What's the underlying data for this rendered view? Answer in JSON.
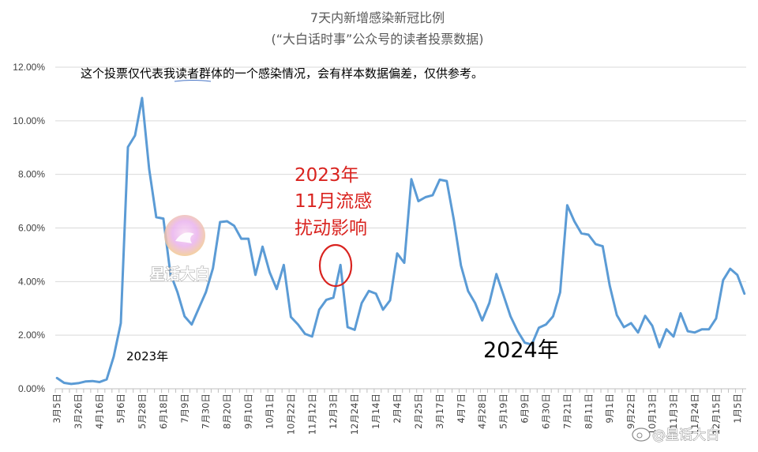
{
  "chart_data": {
    "type": "line",
    "title": "7天内新增感染新冠比例",
    "subtitle": "(“大白话时事”公众号的读者投票数据)",
    "ylim": [
      0,
      12
    ],
    "y_ticks": [
      "0.00%",
      "2.00%",
      "4.00%",
      "6.00%",
      "8.00%",
      "10.00%",
      "12.00%"
    ],
    "grid": true,
    "x_tick_labels": [
      "3月5日",
      "3月26日",
      "4月16日",
      "5月6日",
      "5月28日",
      "6月18日",
      "7月9日",
      "7月30日",
      "8月20日",
      "9月10日",
      "10月1日",
      "10月22日",
      "11月12日",
      "12月3日",
      "12月24日",
      "1月14日",
      "2月4日",
      "2月25日",
      "3月17日",
      "4月7日",
      "4月28日",
      "5月19日",
      "6月9日",
      "6月30日",
      "7月21日",
      "8月11日",
      "9月1日",
      "9月22日",
      "10月13日",
      "11月3日",
      "11月24日",
      "12月15日",
      "1月5日"
    ],
    "series": [
      {
        "color": "#5b9bd5",
        "values": [
          0.4,
          0.22,
          0.18,
          0.21,
          0.27,
          0.29,
          0.25,
          0.35,
          1.2,
          2.45,
          9.02,
          9.45,
          10.85,
          8.2,
          6.4,
          6.35,
          4.3,
          3.6,
          2.7,
          2.4,
          3.0,
          3.6,
          4.5,
          6.22,
          6.25,
          6.08,
          5.6,
          5.6,
          4.25,
          5.3,
          4.35,
          3.72,
          4.62,
          2.68,
          2.4,
          2.05,
          1.95,
          2.95,
          3.32,
          3.4,
          4.62,
          2.3,
          2.2,
          3.2,
          3.65,
          3.55,
          2.95,
          3.3,
          5.05,
          4.7,
          7.82,
          7.0,
          7.15,
          7.22,
          7.8,
          7.75,
          6.3,
          4.6,
          3.65,
          3.2,
          2.55,
          3.2,
          4.28,
          3.5,
          2.7,
          2.15,
          1.72,
          1.65,
          2.28,
          2.4,
          2.7,
          3.6,
          6.85,
          6.25,
          5.8,
          5.75,
          5.4,
          5.32,
          3.85,
          2.75,
          2.3,
          2.45,
          2.1,
          2.72,
          2.35,
          1.55,
          2.22,
          1.95,
          2.82,
          2.15,
          2.1,
          2.22,
          2.22,
          2.62,
          4.05,
          4.48,
          4.25,
          3.55
        ]
      }
    ],
    "annotations": {
      "disclaimer": "这个投票仅代表我读者群体的一个感染情况，会有样本数据偏差，仅供参考。",
      "flu_note": [
        "2023年",
        "11月流感",
        "扰动影响"
      ],
      "year_2023": "2023年",
      "year_2024": "2024年"
    }
  },
  "watermarks": {
    "center": "星话大白",
    "corner": "@星话大白"
  }
}
